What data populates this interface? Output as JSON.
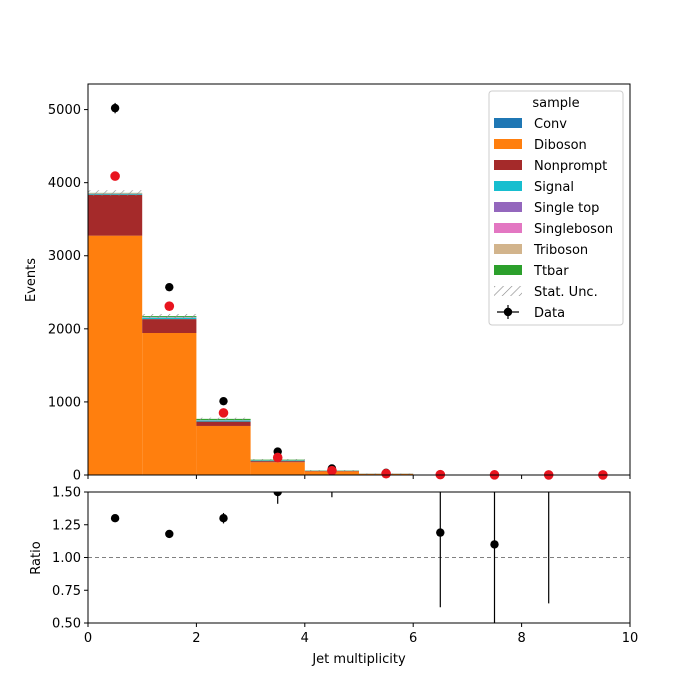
{
  "chart_data": [
    {
      "panel": "main",
      "type": "bar",
      "stacked": true,
      "bin_edges": [
        0,
        1,
        2,
        3,
        4,
        5,
        6,
        7,
        8,
        9,
        10
      ],
      "ylabel": "Events",
      "xlim": [
        0,
        10
      ],
      "ylim": [
        0,
        5350
      ],
      "yticks": [
        0,
        1000,
        2000,
        3000,
        4000,
        5000
      ],
      "xticks": [
        0,
        2,
        4,
        6,
        8,
        10
      ],
      "grid": false,
      "legend": {
        "title": "sample",
        "placement": "top-right"
      },
      "series": [
        {
          "name": "Conv",
          "color": "#1f77b4",
          "values": [
            5,
            3,
            1,
            0,
            0,
            0,
            0,
            0,
            0,
            0
          ]
        },
        {
          "name": "Diboson",
          "color": "#ff7f0e",
          "values": [
            3270,
            1940,
            670,
            175,
            50,
            15,
            5,
            0,
            0,
            0
          ]
        },
        {
          "name": "Nonprompt",
          "color": "#a52a2a",
          "values": [
            560,
            190,
            60,
            15,
            5,
            2,
            0,
            0,
            0,
            0
          ]
        },
        {
          "name": "Signal",
          "color": "#17becf",
          "values": [
            10,
            20,
            15,
            8,
            3,
            1,
            0,
            0,
            0,
            0
          ]
        },
        {
          "name": "Single top",
          "color": "#9467bd",
          "values": [
            2,
            3,
            3,
            2,
            1,
            0,
            0,
            0,
            0,
            0
          ]
        },
        {
          "name": "Singleboson",
          "color": "#e377c2",
          "values": [
            3,
            2,
            1,
            0,
            0,
            0,
            0,
            0,
            0,
            0
          ]
        },
        {
          "name": "Triboson",
          "color": "#d2b48c",
          "values": [
            5,
            5,
            3,
            2,
            1,
            0,
            0,
            0,
            0,
            0
          ]
        },
        {
          "name": "Ttbar",
          "color": "#2ca02c",
          "values": [
            5,
            12,
            15,
            8,
            3,
            1,
            0,
            0,
            0,
            0
          ]
        }
      ],
      "stat_unc": {
        "name": "Stat. Unc.",
        "color": "#888888"
      },
      "data": {
        "name": "Data",
        "color": "#000000",
        "x": [
          0.5,
          1.5,
          2.5,
          3.5,
          4.5,
          5.5,
          6.5,
          7.5,
          8.5,
          9.5
        ],
        "y": [
          5020,
          2570,
          1010,
          320,
          90,
          30,
          8,
          3,
          2,
          1
        ],
        "yerr": [
          71,
          51,
          32,
          18,
          9.5,
          5.5,
          2.8,
          1.7,
          1.4,
          1
        ]
      },
      "red_markers": {
        "color": "#e8141e",
        "x": [
          0.5,
          1.5,
          2.5,
          3.5,
          4.5,
          5.5,
          6.5,
          7.5,
          8.5,
          9.5
        ],
        "y": [
          4090,
          2310,
          850,
          240,
          60,
          18,
          5,
          2,
          1,
          1
        ]
      }
    },
    {
      "panel": "ratio",
      "type": "scatter",
      "xlabel": "Jet multiplicity",
      "ylabel": "Ratio",
      "xlim": [
        0,
        10
      ],
      "ylim": [
        0.5,
        1.5
      ],
      "yticks": [
        "0.50",
        "0.75",
        "1.00",
        "1.25",
        "1.50"
      ],
      "xticks": [
        "0",
        "2",
        "4",
        "6",
        "8",
        "10"
      ],
      "reference_line": 1.0,
      "x": [
        0.5,
        1.5,
        2.5,
        3.5,
        4.5,
        6.5,
        7.5,
        8.5
      ],
      "y": [
        1.3,
        1.18,
        1.3,
        1.5,
        1.62,
        1.19,
        1.1,
        1.55
      ],
      "yerr": [
        0.02,
        0.02,
        0.04,
        0.09,
        0.16,
        0.57,
        0.75,
        0.9
      ]
    }
  ]
}
